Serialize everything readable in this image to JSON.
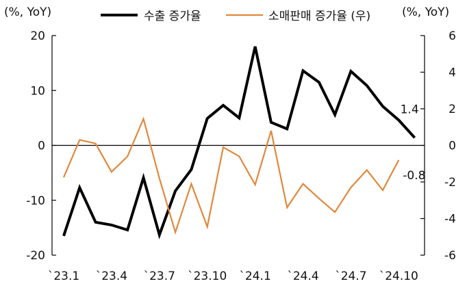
{
  "chart_data": {
    "type": "line",
    "left_axis_unit": "(%, YoY)",
    "right_axis_unit": "(%, YoY)",
    "x": [
      "`23.1",
      "`23.2",
      "`23.3",
      "`23.4",
      "`23.5",
      "`23.6",
      "`23.7",
      "`23.8",
      "`23.9",
      "`23.10",
      "`23.11",
      "`23.12",
      "`24.1",
      "`24.2",
      "`24.3",
      "`24.4",
      "`24.5",
      "`24.6",
      "`24.7",
      "`24.8",
      "`24.9",
      "`24.10",
      "`24.11"
    ],
    "x_tick_labels": [
      "`23.1",
      "`23.4",
      "`23.7",
      "`23.10",
      "`24.1",
      "`24.4",
      "`24.7",
      "`24.10"
    ],
    "left_ylim": [
      -20,
      20
    ],
    "left_yticks": [
      "20",
      "10",
      "0",
      "-10",
      "-20"
    ],
    "right_ylim": [
      -6,
      6
    ],
    "right_yticks": [
      "6",
      "4",
      "2",
      "0",
      "-2",
      "-4",
      "-6"
    ],
    "series": [
      {
        "name": "수출 증가율",
        "axis": "left",
        "color": "#000000",
        "values": [
          -16.5,
          -7.7,
          -14.0,
          -14.5,
          -15.4,
          -5.9,
          -16.3,
          -8.3,
          -4.4,
          4.9,
          7.3,
          5.0,
          18.0,
          4.2,
          3.0,
          13.6,
          11.5,
          5.6,
          13.5,
          10.9,
          7.1,
          4.6,
          1.4
        ]
      },
      {
        "name": "소매판매 증가율 (우)",
        "axis": "right",
        "color": "#E0883A",
        "values": [
          -1.75,
          0.3,
          0.1,
          -1.45,
          -0.6,
          1.45,
          -1.8,
          -4.75,
          -2.1,
          -4.45,
          -0.1,
          -0.6,
          -2.15,
          0.8,
          -3.4,
          -2.1,
          -2.9,
          -3.65,
          -2.3,
          -1.35,
          -2.45,
          -0.8,
          null
        ]
      }
    ],
    "data_labels": [
      {
        "series": "수출 증가율",
        "text": "1.4",
        "value": 1.4
      },
      {
        "series": "소매판매 증가율 (우)",
        "text": "-0.8",
        "value": -0.8
      }
    ],
    "legend_position": "top-center",
    "grid": false
  }
}
